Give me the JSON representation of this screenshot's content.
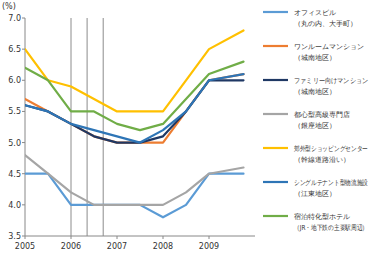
{
  "chart_data": {
    "type": "line",
    "y_label": "(%)",
    "x": [
      2005,
      2005.5,
      2006,
      2006.5,
      2007,
      2007.5,
      2008,
      2008.5,
      2009,
      2009.75
    ],
    "xlim": [
      2005,
      2010
    ],
    "xticks": [
      2005,
      2006,
      2007,
      2008,
      2009
    ],
    "ylim": [
      3.5,
      7.0
    ],
    "yticks": [
      3.5,
      {
        "value": 4,
        "label": "4.0"
      },
      4.5,
      {
        "value": 5,
        "label": "5.0"
      },
      5.5,
      {
        "value": 6,
        "label": "6.0"
      },
      6.5,
      {
        "value": 7,
        "label": "7.0"
      }
    ],
    "period_lines": [
      2006,
      2006.35,
      2006.7
    ],
    "grid": false,
    "legend": "right",
    "series": [
      {
        "name": "オフィスビル\n（丸の内、大手町）",
        "color": "#5b9bd5",
        "values": [
          4.5,
          4.5,
          4.0,
          4.0,
          4.0,
          4.0,
          3.8,
          4.0,
          4.5,
          4.5
        ]
      },
      {
        "name": "ワンルームマンション\n（城南地区）",
        "color": "#ed7d31",
        "values": [
          5.7,
          5.5,
          5.3,
          5.1,
          5.0,
          5.0,
          5.0,
          5.5,
          6.0,
          6.1
        ]
      },
      {
        "name": "ファミリー向けマンション\n（城南地区）",
        "color": "#1f3864",
        "values": [
          5.6,
          5.5,
          5.3,
          5.1,
          5.0,
          5.0,
          5.1,
          5.5,
          6.0,
          6.0
        ]
      },
      {
        "name": "都心型高級専門店\n（銀座地区）",
        "color": "#a5a5a5",
        "values": [
          4.8,
          4.5,
          4.2,
          4.0,
          4.0,
          4.0,
          4.0,
          4.2,
          4.5,
          4.6
        ]
      },
      {
        "name": "郊外型ショッピングセンター\n（幹線道路沿い）",
        "color": "#ffc000",
        "values": [
          6.5,
          6.0,
          5.9,
          5.7,
          5.5,
          5.5,
          5.5,
          6.0,
          6.5,
          6.8
        ]
      },
      {
        "name": "シングルテナント型物流施設\n（江東地区）",
        "color": "#2e75b6",
        "values": [
          5.6,
          5.5,
          5.3,
          5.2,
          5.1,
          5.0,
          5.2,
          5.5,
          6.0,
          6.1
        ]
      },
      {
        "name": "宿泊特化型ホテル\n（JR・地下鉄の主要駅周辺）",
        "color": "#70ad47",
        "values": [
          6.2,
          6.0,
          5.5,
          5.5,
          5.3,
          5.2,
          5.3,
          5.7,
          6.1,
          6.3
        ]
      }
    ]
  }
}
